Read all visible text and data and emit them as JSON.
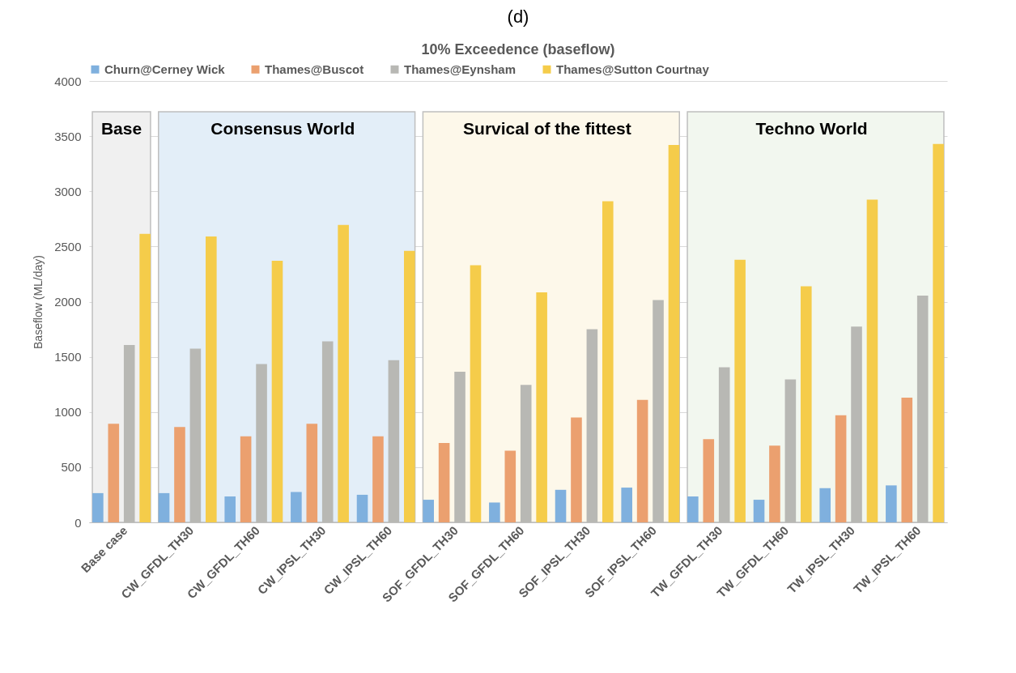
{
  "chart_data": {
    "type": "bar",
    "title": "(d)",
    "subtitle": "10% Exceedence (baseflow)",
    "ylabel": "Baseflow (ML/day)",
    "categories": [
      "Base case",
      "CW_GFDL_TH30",
      "CW_GFDL_TH60",
      "CW_IPSL_TH30",
      "CW_IPSL_TH60",
      "SOF_GFDL_TH30",
      "SOF_GFDL_TH60",
      "SOF_IPSL_TH30",
      "SOF_IPSL_TH60",
      "TW_GFDL_TH30",
      "TW_GFDL_TH60",
      "TW_IPSL_TH30",
      "TW_IPSL_TH60"
    ],
    "series": [
      {
        "name": "Churn@Cerney Wick",
        "color": "#7fb0de",
        "values": [
          265,
          265,
          235,
          275,
          250,
          205,
          180,
          295,
          315,
          235,
          205,
          310,
          335
        ]
      },
      {
        "name": "Thames@Buscot",
        "color": "#eba06f",
        "values": [
          893,
          865,
          780,
          893,
          780,
          720,
          650,
          950,
          1110,
          755,
          695,
          970,
          1130
        ]
      },
      {
        "name": "Thames@Eynsham",
        "color": "#b8b8b4",
        "values": [
          1607,
          1575,
          1435,
          1640,
          1470,
          1365,
          1245,
          1750,
          2015,
          1405,
          1295,
          1775,
          2055
        ]
      },
      {
        "name": "Thames@Sutton Courtnay",
        "color": "#f5cc4a",
        "values": [
          2615,
          2590,
          2370,
          2695,
          2460,
          2330,
          2085,
          2910,
          3420,
          2380,
          2140,
          2925,
          3430
        ]
      }
    ],
    "ylim": [
      0,
      4000
    ],
    "yticks": [
      0,
      500,
      1000,
      1500,
      2000,
      2500,
      3000,
      3500,
      4000
    ],
    "grid": "y",
    "legend": "top",
    "bands": [
      {
        "axis": "x",
        "from": "Base case",
        "to": "Base case",
        "label": "Base",
        "color": "#f0f0f0"
      },
      {
        "axis": "x",
        "from": "CW_GFDL_TH30",
        "to": "CW_IPSL_TH60",
        "label": "Consensus World",
        "color": "#e3eef8"
      },
      {
        "axis": "x",
        "from": "SOF_GFDL_TH30",
        "to": "SOF_IPSL_TH60",
        "label": "Survical of the fittest",
        "color": "#fdf8ea"
      },
      {
        "axis": "x",
        "from": "TW_GFDL_TH30",
        "to": "TW_IPSL_TH60",
        "label": "Techno World",
        "color": "#f2f7ef"
      }
    ]
  }
}
